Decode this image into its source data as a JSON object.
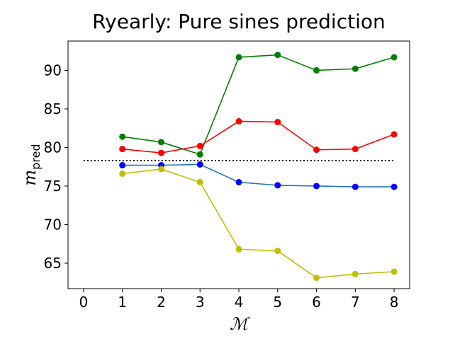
{
  "chart_data": {
    "type": "line",
    "title": "Ryearly: Pure sines prediction",
    "xlabel": "ℳ",
    "ylabel": {
      "main": "m",
      "subscript": "pred"
    },
    "x": [
      1,
      2,
      3,
      4,
      5,
      6,
      7,
      8
    ],
    "xlim": [
      -0.4,
      8.4
    ],
    "ylim": [
      61.7,
      93.8
    ],
    "xticks": [
      0,
      1,
      2,
      3,
      4,
      5,
      6,
      7,
      8
    ],
    "yticks": [
      65,
      70,
      75,
      80,
      85,
      90
    ],
    "grid": false,
    "reference_line": {
      "y": 78.3,
      "x_from": 0,
      "x_to": 8,
      "style": "dotted",
      "color": "#000000"
    },
    "series": [
      {
        "name": "green",
        "line_color": "#008000",
        "marker_color": "#008000",
        "values": [
          81.4,
          80.7,
          79.1,
          91.7,
          92.0,
          90.0,
          90.2,
          91.7
        ]
      },
      {
        "name": "red",
        "line_color": "#ff0000",
        "marker_color": "#ff0000",
        "values": [
          79.8,
          79.3,
          80.2,
          83.4,
          83.3,
          79.7,
          79.8,
          81.7
        ]
      },
      {
        "name": "blue",
        "line_color": "#1f77b4",
        "marker_color": "#0000ff",
        "values": [
          77.7,
          77.7,
          77.8,
          75.5,
          75.1,
          75.0,
          74.9,
          74.9
        ]
      },
      {
        "name": "yellow",
        "line_color": "#bfbf00",
        "marker_color": "#bfbf00",
        "values": [
          76.6,
          77.2,
          75.5,
          66.8,
          66.6,
          63.1,
          63.6,
          63.9
        ]
      }
    ]
  }
}
